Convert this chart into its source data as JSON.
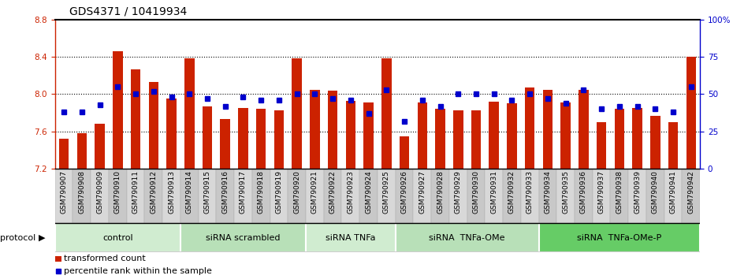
{
  "title": "GDS4371 / 10419934",
  "samples": [
    "GSM790907",
    "GSM790908",
    "GSM790909",
    "GSM790910",
    "GSM790911",
    "GSM790912",
    "GSM790913",
    "GSM790914",
    "GSM790915",
    "GSM790916",
    "GSM790917",
    "GSM790918",
    "GSM790919",
    "GSM790920",
    "GSM790921",
    "GSM790922",
    "GSM790923",
    "GSM790924",
    "GSM790925",
    "GSM790926",
    "GSM790927",
    "GSM790928",
    "GSM790929",
    "GSM790930",
    "GSM790931",
    "GSM790932",
    "GSM790933",
    "GSM790934",
    "GSM790935",
    "GSM790936",
    "GSM790937",
    "GSM790938",
    "GSM790939",
    "GSM790940",
    "GSM790941",
    "GSM790942"
  ],
  "bar_values": [
    7.52,
    7.58,
    7.68,
    8.46,
    8.27,
    8.13,
    7.95,
    8.38,
    7.87,
    7.73,
    7.85,
    7.84,
    7.83,
    8.38,
    8.05,
    8.04,
    7.93,
    7.91,
    8.38,
    7.55,
    7.91,
    7.84,
    7.83,
    7.83,
    7.92,
    7.9,
    8.07,
    8.05,
    7.91,
    8.05,
    7.7,
    7.84,
    7.85,
    7.77,
    7.7,
    8.4
  ],
  "percentile_values": [
    38,
    38,
    43,
    55,
    50,
    52,
    48,
    50,
    47,
    42,
    48,
    46,
    46,
    50,
    50,
    47,
    46,
    37,
    53,
    32,
    46,
    42,
    50,
    50,
    50,
    46,
    50,
    47,
    44,
    53,
    40,
    42,
    42,
    40,
    38,
    55
  ],
  "ylim_left": [
    7.2,
    8.8
  ],
  "ylim_right": [
    0,
    100
  ],
  "yticks_left": [
    7.2,
    7.6,
    8.0,
    8.4,
    8.8
  ],
  "yticks_right": [
    0,
    25,
    50,
    75,
    100
  ],
  "ytick_labels_right": [
    "0",
    "25",
    "50",
    "75",
    "100%"
  ],
  "bar_color": "#cc2200",
  "dot_color": "#0000cc",
  "bar_bottom": 7.2,
  "groups": [
    {
      "label": "control",
      "start": 0,
      "end": 7,
      "color": "#d0ecd0"
    },
    {
      "label": "siRNA scrambled",
      "start": 7,
      "end": 14,
      "color": "#b8e0b8"
    },
    {
      "label": "siRNA TNFa",
      "start": 14,
      "end": 19,
      "color": "#d0ecd0"
    },
    {
      "label": "siRNA  TNFa-OMe",
      "start": 19,
      "end": 27,
      "color": "#b8e0b8"
    },
    {
      "label": "siRNA  TNFa-OMe-P",
      "start": 27,
      "end": 36,
      "color": "#66cc66"
    }
  ],
  "legend_bar_label": "transformed count",
  "legend_dot_label": "percentile rank within the sample",
  "protocol_label": "protocol",
  "bar_color_red": "#cc2200",
  "dot_color_blue": "#0000cc",
  "title_fontsize": 10,
  "tick_fontsize": 7.5,
  "label_fontsize": 6.5,
  "group_fontsize": 8
}
